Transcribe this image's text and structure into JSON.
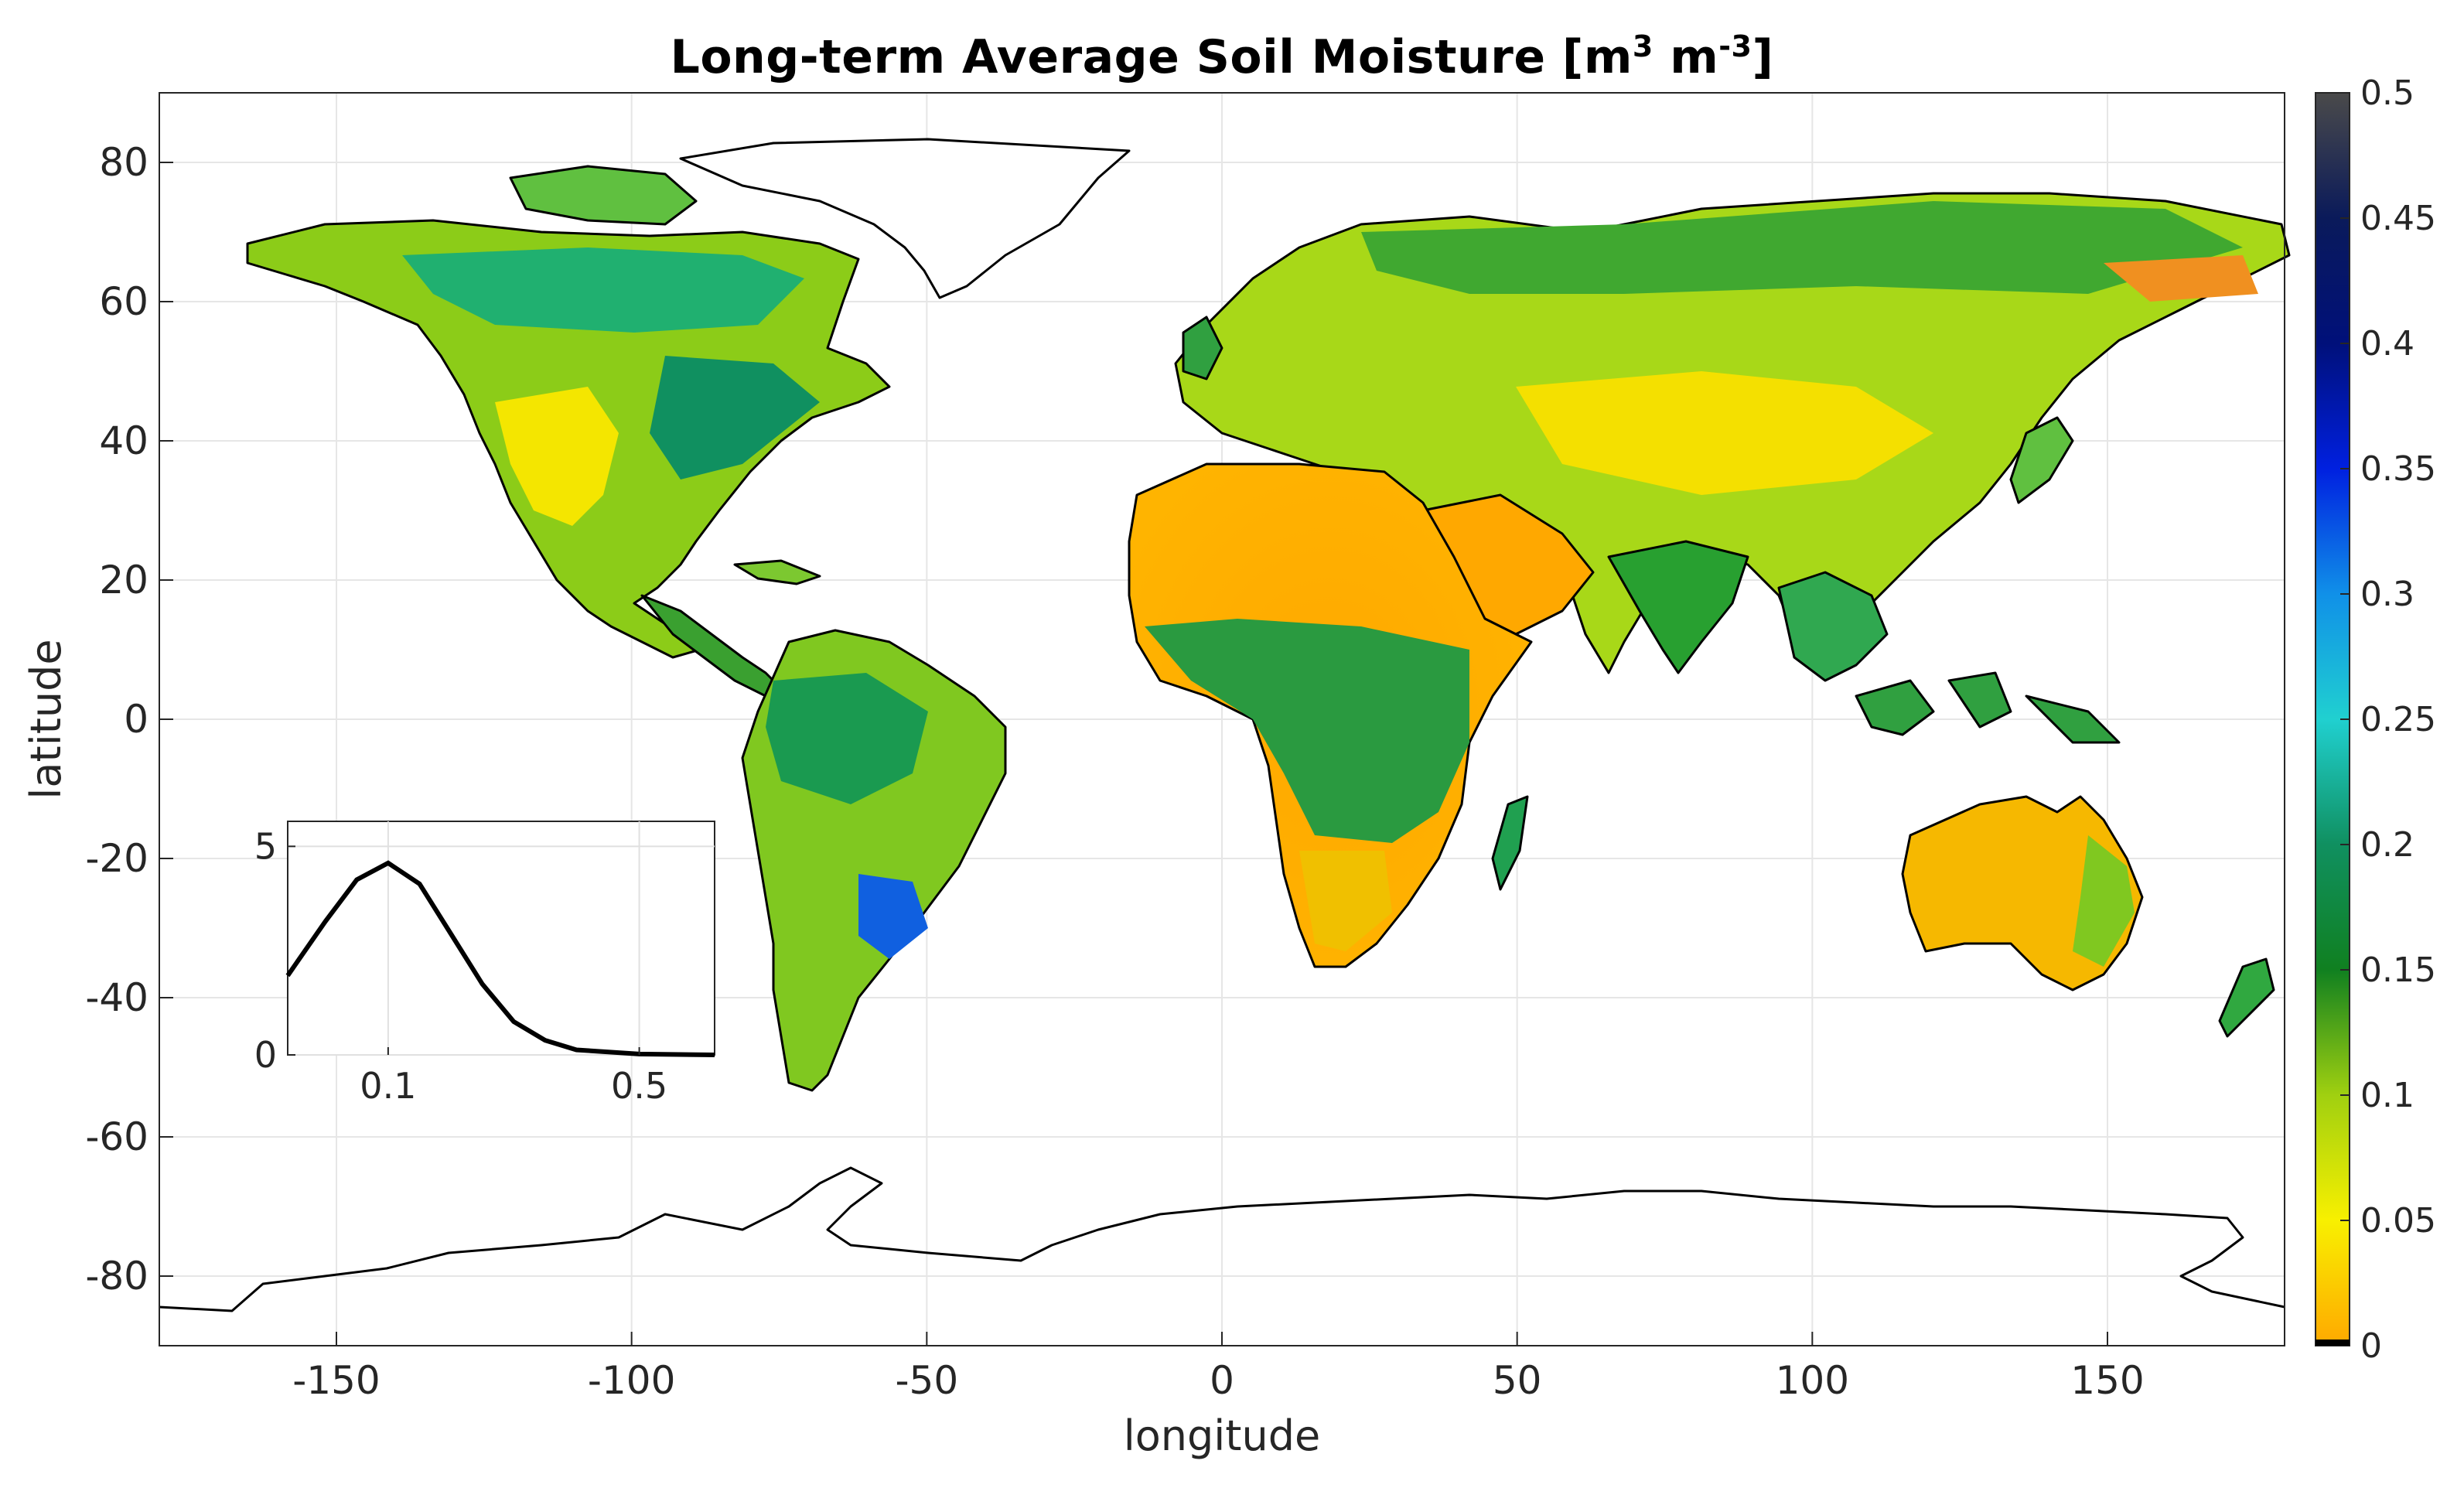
{
  "title": {
    "main": "Long-term Average Soil Moisture [m",
    "exp1": "3",
    "mid": " m",
    "exp2": "-3",
    "end": "]"
  },
  "axes": {
    "xlabel": "longitude",
    "ylabel": "latitude",
    "x_ticks": [
      "-150",
      "-100",
      "-50",
      "0",
      "50",
      "100",
      "150"
    ],
    "y_ticks": [
      "80",
      "60",
      "40",
      "20",
      "0",
      "-20",
      "-40",
      "-60",
      "-80"
    ],
    "xlim": [
      -180,
      180
    ],
    "ylim": [
      -90,
      90
    ]
  },
  "colorbar": {
    "ticks": [
      "0.5",
      "0.45",
      "0.4",
      "0.35",
      "0.3",
      "0.25",
      "0.2",
      "0.15",
      "0.1",
      "0.05",
      "0"
    ],
    "colors": {
      "0.5": "#4a4a4a",
      "0.45": "#0a1a5a",
      "0.4": "#00107a",
      "0.35": "#0020e0",
      "0.3": "#1090e8",
      "0.25": "#20d0d0",
      "0.2": "#109060",
      "0.15": "#108020",
      "0.1": "#a0d010",
      "0.05": "#f8f000",
      "0": "#ffa800"
    }
  },
  "inset": {
    "x_ticks": [
      "0.1",
      "0.5"
    ],
    "y_ticks": [
      "5",
      "0"
    ],
    "xlim": [
      -0.06,
      0.62
    ],
    "ylim": [
      0,
      5.6
    ]
  },
  "chart_data": {
    "type": "line",
    "title": "",
    "xlabel": "",
    "ylabel": "",
    "series": [
      {
        "x": [
          -0.06,
          0.0,
          0.05,
          0.1,
          0.15,
          0.2,
          0.25,
          0.3,
          0.35,
          0.4,
          0.5,
          0.62
        ],
        "values": [
          1.9,
          3.2,
          4.2,
          4.6,
          4.1,
          2.9,
          1.7,
          0.8,
          0.35,
          0.12,
          0.02,
          0.0
        ]
      }
    ],
    "xlim": [
      -0.06,
      0.62
    ],
    "ylim": [
      0,
      5.6
    ],
    "grid": true
  }
}
